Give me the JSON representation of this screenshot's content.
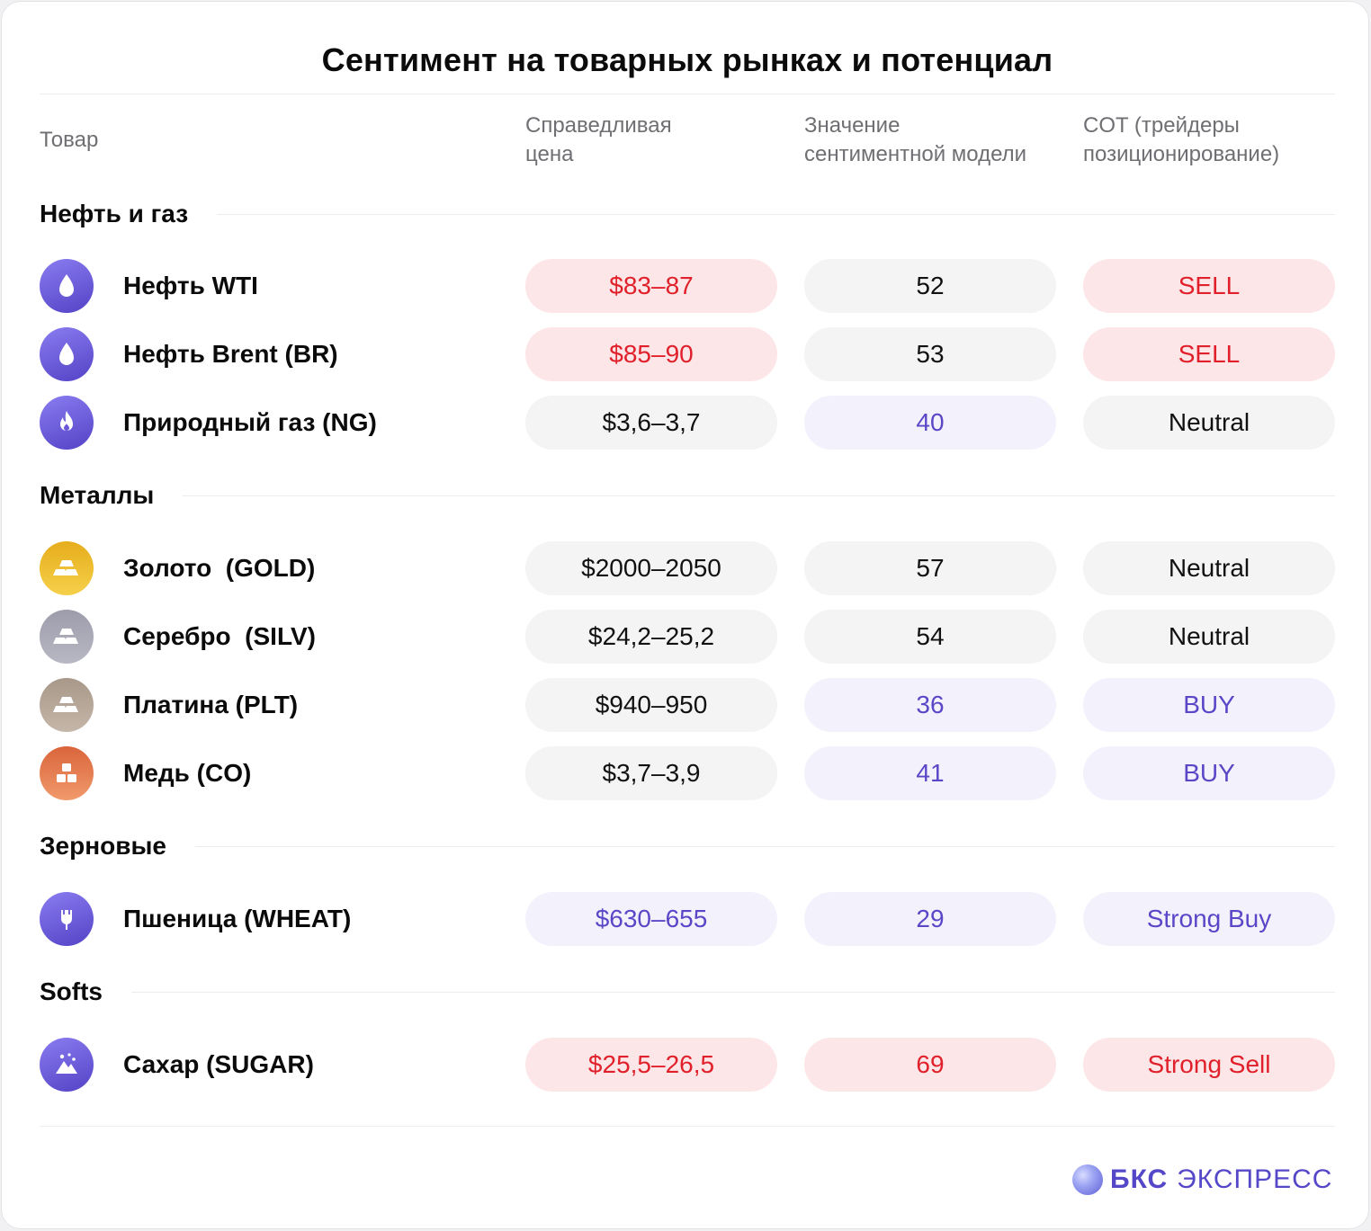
{
  "title": "Сентимент на товарных рынках и потенциал",
  "headers": {
    "commodity": "Товар",
    "fair_price_l1": "Справедливая",
    "fair_price_l2": "цена",
    "sentiment_l1": "Значение",
    "sentiment_l2": "сентиментной модели",
    "cot_l1": "COT (трейдеры",
    "cot_l2": "позиционирование)"
  },
  "sections": [
    {
      "title": "Нефть и газ",
      "rows": [
        {
          "icon": "oil-drop-icon",
          "name": "Нефть WTI",
          "price": "$83–87",
          "sentiment": "52",
          "cot": "SELL"
        },
        {
          "icon": "oil-drop-icon",
          "name": "Нефть Brent (BR)",
          "price": "$85–90",
          "sentiment": "53",
          "cot": "SELL"
        },
        {
          "icon": "flame-icon",
          "name": "Природный газ (NG)",
          "price": "$3,6–3,7",
          "sentiment": "40",
          "cot": "Neutral"
        }
      ]
    },
    {
      "title": "Металлы",
      "rows": [
        {
          "icon": "gold-bars-icon",
          "name": "Золото  (GOLD)",
          "price": "$2000–2050",
          "sentiment": "57",
          "cot": "Neutral"
        },
        {
          "icon": "silver-bars-icon",
          "name": "Серебро  (SILV)",
          "price": "$24,2–25,2",
          "sentiment": "54",
          "cot": "Neutral"
        },
        {
          "icon": "platinum-bars-icon",
          "name": "Платина (PLT)",
          "price": "$940–950",
          "sentiment": "36",
          "cot": "BUY"
        },
        {
          "icon": "copper-blocks-icon",
          "name": "Медь (CO)",
          "price": "$3,7–3,9",
          "sentiment": "41",
          "cot": "BUY"
        }
      ]
    },
    {
      "title": "Зерновые",
      "rows": [
        {
          "icon": "wheat-icon",
          "name": "Пшеница (WHEAT)",
          "price": "$630–655",
          "sentiment": "29",
          "cot": "Strong Buy"
        }
      ]
    },
    {
      "title": "Softs",
      "rows": [
        {
          "icon": "sugar-icon",
          "name": "Сахар (SUGAR)",
          "price": "$25,5–26,5",
          "sentiment": "69",
          "cot": "Strong Sell"
        }
      ]
    }
  ],
  "colors": {
    "sell_red": "#e0202a",
    "buy_purple": "#5a47c8",
    "neutral_text": "#111111"
  },
  "logo": {
    "part1": "БКС",
    "part2": "ЭКСПРЕСС"
  }
}
